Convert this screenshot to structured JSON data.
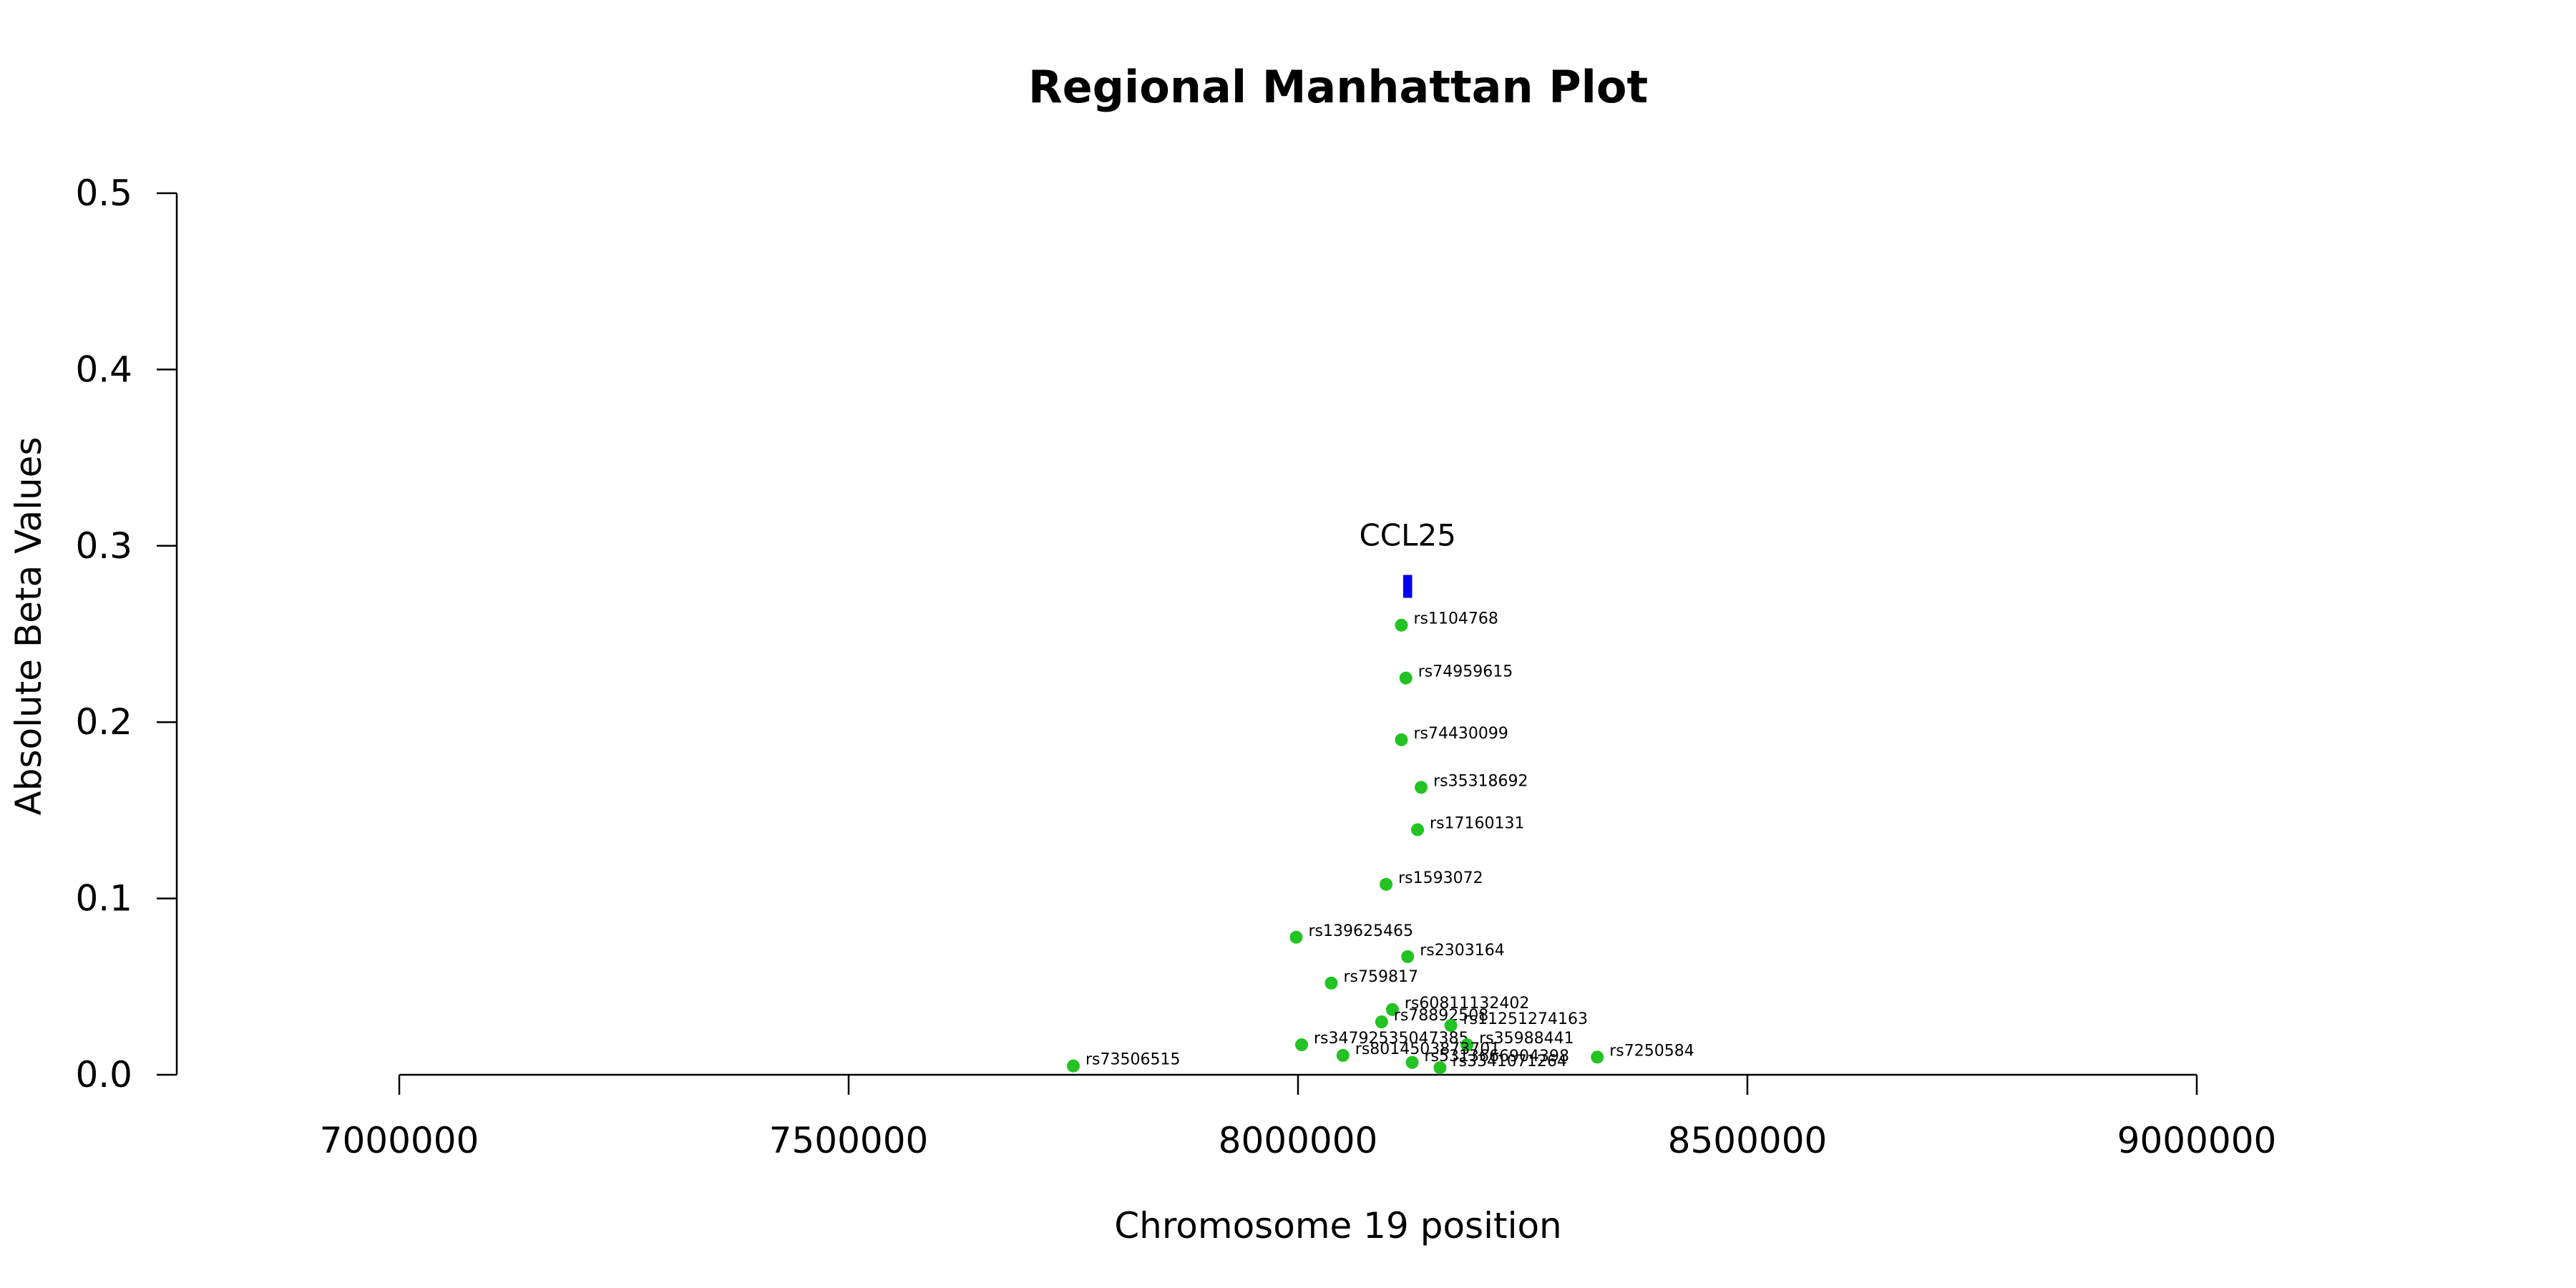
{
  "chart_data": {
    "type": "scatter",
    "title": "Regional Manhattan Plot",
    "xlabel": "Chromosome 19 position",
    "ylabel": "Absolute Beta Values",
    "xlim": [
      7000000,
      9000000
    ],
    "ylim": [
      0,
      0.5
    ],
    "x_ticks": [
      7000000,
      7500000,
      8000000,
      8500000,
      9000000
    ],
    "x_tick_labels": [
      "7000000",
      "7500000",
      "8000000",
      "8500000",
      "9000000"
    ],
    "y_ticks": [
      0.0,
      0.1,
      0.2,
      0.3,
      0.4,
      0.5
    ],
    "y_tick_labels": [
      "0.0",
      "0.1",
      "0.2",
      "0.3",
      "0.4",
      "0.5"
    ],
    "grid": false,
    "point_color": "#22c322",
    "gene_color": "#0000ee",
    "genes": [
      {
        "name": "CCL25",
        "start": 8117000,
        "end": 8127000,
        "y": 0.277
      }
    ],
    "points": [
      {
        "label": "rs1104768",
        "x": 8115000,
        "y": 0.255
      },
      {
        "label": "rs74959615",
        "x": 8120000,
        "y": 0.225
      },
      {
        "label": "rs74430099",
        "x": 8115000,
        "y": 0.19
      },
      {
        "label": "rs35318692",
        "x": 8137000,
        "y": 0.163
      },
      {
        "label": "rs17160131",
        "x": 8133000,
        "y": 0.139
      },
      {
        "label": "rs1593072",
        "x": 8098000,
        "y": 0.108
      },
      {
        "label": "rs139625465",
        "x": 7998000,
        "y": 0.078
      },
      {
        "label": "rs2303164",
        "x": 8122000,
        "y": 0.067
      },
      {
        "label": "rs759817",
        "x": 8037000,
        "y": 0.052
      },
      {
        "label": "rs60811132402",
        "x": 8105000,
        "y": 0.037
      },
      {
        "label": "rs78892508",
        "x": 8093000,
        "y": 0.03
      },
      {
        "label": "rs11251274163",
        "x": 8170000,
        "y": 0.028
      },
      {
        "label": "rs34792535047385",
        "x": 8004000,
        "y": 0.017
      },
      {
        "label": "rs35988441",
        "x": 8188000,
        "y": 0.017
      },
      {
        "label": "rs8014503873701",
        "x": 8050000,
        "y": 0.011
      },
      {
        "label": "rs7250584",
        "x": 8333000,
        "y": 0.01
      },
      {
        "label": "rs5313666904398",
        "x": 8127000,
        "y": 0.007
      },
      {
        "label": "rs73506515",
        "x": 7750000,
        "y": 0.005
      },
      {
        "label": "rs3341071264",
        "x": 8158000,
        "y": 0.004
      }
    ]
  }
}
